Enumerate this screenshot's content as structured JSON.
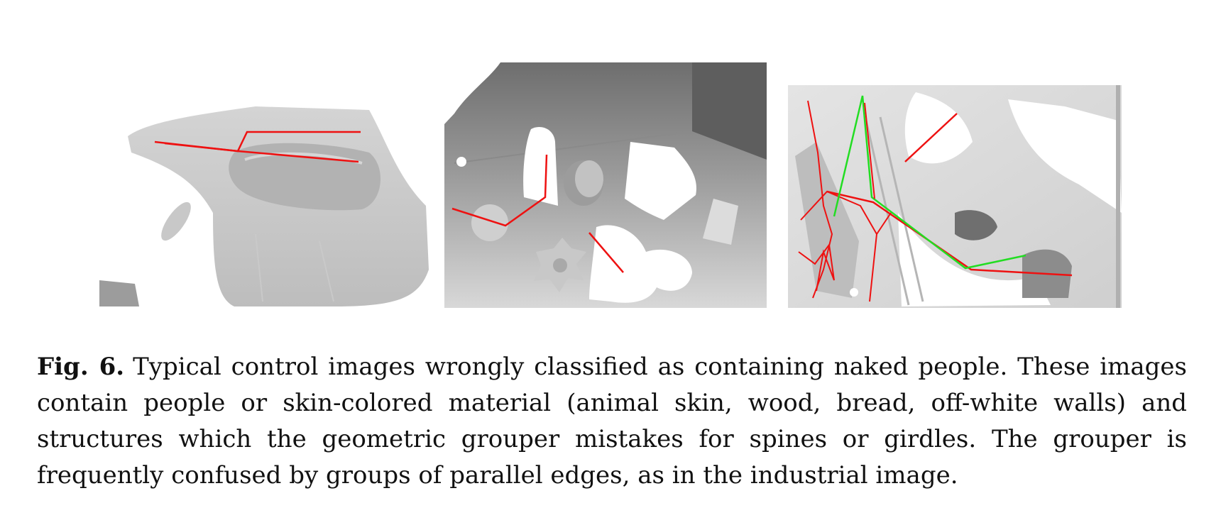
{
  "figure": {
    "label": "Fig. 6.",
    "caption": "Typical control images wrongly classified as containing naked people. These images contain people or skin-colored material (animal skin, wood, bread, off-white walls) and structures which the geometric grouper mistakes for spines or girdles. The grouper is frequently confused by groups of parallel edges, as in the industrial image."
  },
  "colors": {
    "grouper_line": "#ee1111",
    "parallel_line": "#22dd22"
  }
}
